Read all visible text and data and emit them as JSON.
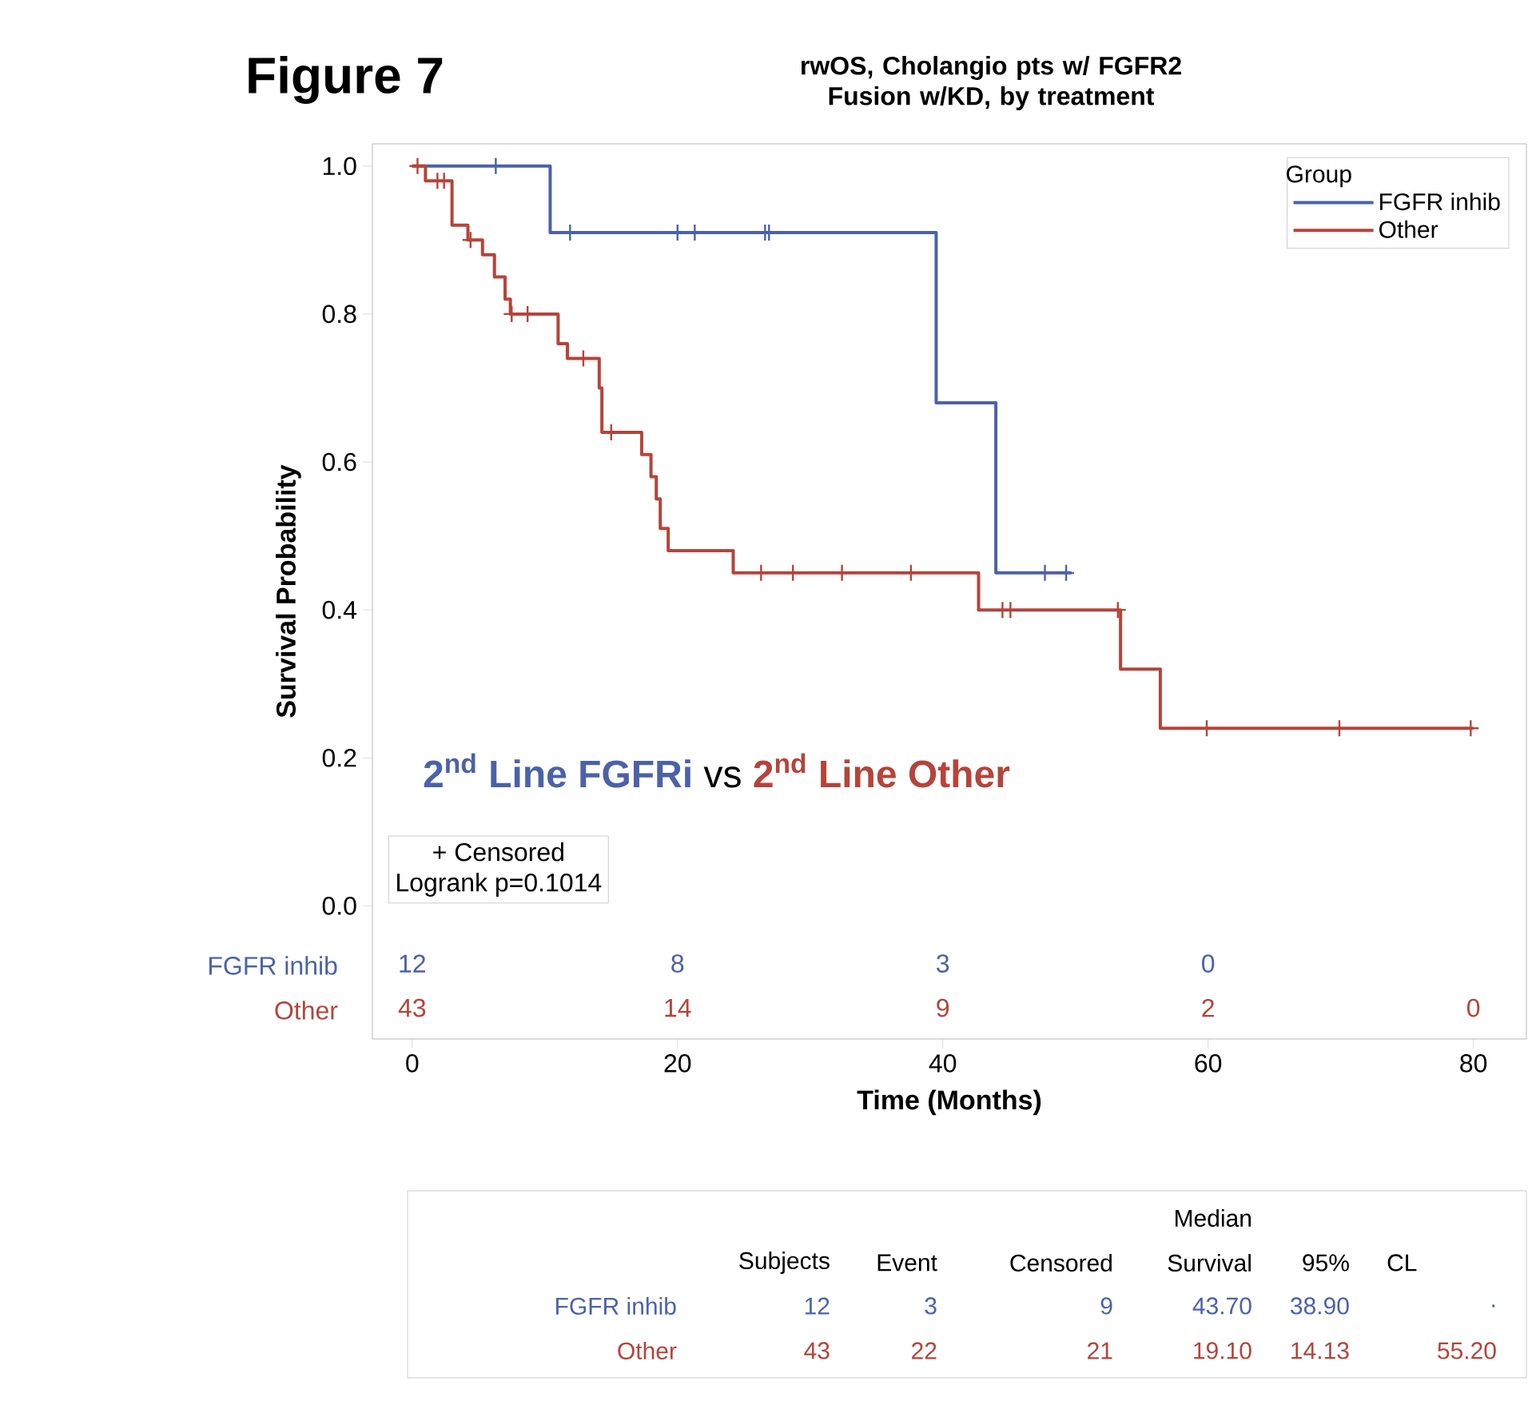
{
  "chart_data": {
    "type": "step",
    "title": "rwOS, Cholangio pts w/ FGFR2 Fusion w/KD, by treatment",
    "xlabel": "Time (Months)",
    "ylabel": "Survival Probability",
    "legend_title": "Group",
    "legend": "top right",
    "xlim": [
      -3,
      84
    ],
    "ylim": [
      -0.18,
      1.03
    ],
    "xticks": [
      0,
      20,
      40,
      60,
      80
    ],
    "yticks": [
      {
        "value": 0,
        "label": "0.0"
      },
      {
        "value": 0.2,
        "label": "0.2"
      },
      {
        "value": 0.4,
        "label": "0.4"
      },
      {
        "value": 0.6,
        "label": "0.6"
      },
      {
        "value": 0.8,
        "label": "0.8"
      },
      {
        "value": 1,
        "label": "1.0"
      }
    ],
    "series": [
      {
        "name": "FGFR inhib",
        "color": "#4b62a8",
        "x": [
          0,
          10.4,
          39.5,
          44,
          49.7
        ],
        "values": [
          1,
          0.91,
          0.68,
          0.45,
          0.45
        ]
      },
      {
        "name": "Other",
        "color": "#b5443a",
        "x": [
          0,
          1.0,
          3.0,
          4.2,
          5.3,
          6.2,
          7.0,
          7.4,
          11.0,
          11.7,
          14.1,
          14.3,
          17.3,
          18.0,
          18.4,
          18.7,
          19.3,
          24.2,
          42.7,
          53.4,
          56.4,
          80.0
        ],
        "values": [
          1,
          0.98,
          0.92,
          0.9,
          0.88,
          0.85,
          0.82,
          0.8,
          0.76,
          0.74,
          0.7,
          0.64,
          0.61,
          0.58,
          0.55,
          0.51,
          0.48,
          0.45,
          0.4,
          0.32,
          0.24,
          0.24
        ]
      },
      {
        "type": "scatter",
        "marker": "cross",
        "color": "#4b62a8",
        "x": [
          6.3,
          11.9,
          20.0,
          21.3,
          26.6,
          26.9,
          47.7,
          49.3
        ],
        "values": [
          1,
          0.91,
          0.91,
          0.91,
          0.91,
          0.91,
          0.45,
          0.45
        ]
      },
      {
        "type": "scatter",
        "marker": "cross",
        "color": "#b5443a",
        "x": [
          0.4,
          1.9,
          2.4,
          4.4,
          7.5,
          8.7,
          12.9,
          15.0,
          26.3,
          28.7,
          32.4,
          37.6,
          44.5,
          45.1,
          53.2,
          59.9,
          69.9,
          79.8
        ],
        "values": [
          1,
          0.98,
          0.98,
          0.9,
          0.8,
          0.8,
          0.74,
          0.64,
          0.45,
          0.45,
          0.45,
          0.45,
          0.4,
          0.4,
          0.4,
          0.24,
          0.24,
          0.24
        ]
      }
    ],
    "annotations": [
      "Figure 7",
      "2$^{nd}$ Line FGFRi",
      "vs",
      "2$^{nd}$ Line Other",
      "+ Censored",
      "Logrank p=0.1014",
      "FGFR inhib",
      "12",
      "8",
      "3",
      "0",
      "Other",
      "43",
      "14",
      "9",
      "2",
      "0",
      "Subjects",
      "Event",
      "Censored",
      "Median",
      "Survival",
      "95%",
      "CL",
      "FGFR inhib",
      "12",
      "3",
      "9",
      "43.70",
      "38.90",
      ".",
      "Other",
      "43",
      "22",
      "21",
      "19.10",
      "14.13",
      "55.20"
    ]
  }
}
